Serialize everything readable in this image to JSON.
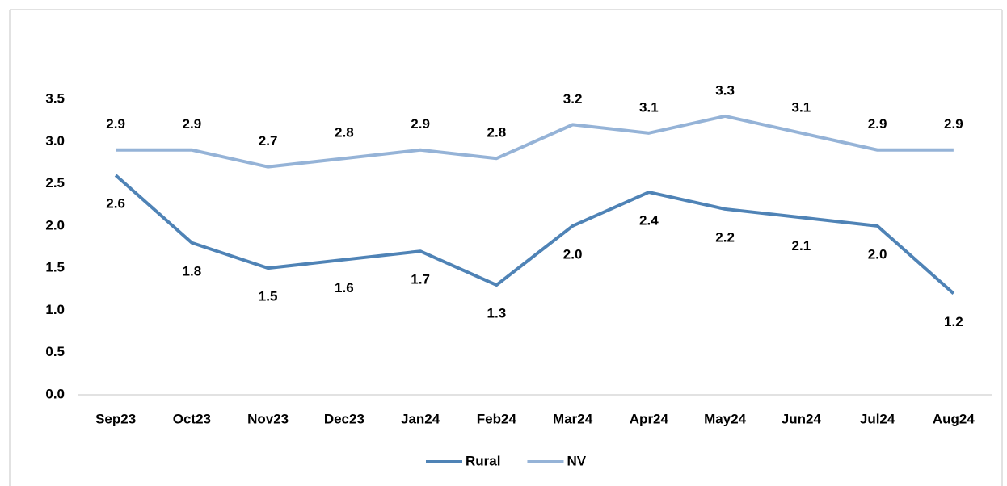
{
  "chart_data": {
    "type": "line",
    "categories": [
      "Sep23",
      "Oct23",
      "Nov23",
      "Dec23",
      "Jan24",
      "Feb24",
      "Mar24",
      "Apr24",
      "May24",
      "Jun24",
      "Jul24",
      "Aug24"
    ],
    "series": [
      {
        "name": "Rural",
        "color": "#4f83b6",
        "values": [
          2.6,
          1.8,
          1.5,
          1.6,
          1.7,
          1.3,
          2.0,
          2.4,
          2.2,
          2.1,
          2.0,
          1.2
        ],
        "value_labels": [
          "2.6",
          "1.8",
          "1.5",
          "1.6",
          "1.7",
          "1.3",
          "2.0",
          "2.4",
          "2.2",
          "2.1",
          "2.0",
          "1.2"
        ]
      },
      {
        "name": "NV",
        "color": "#95b3d7",
        "values": [
          2.9,
          2.9,
          2.7,
          2.8,
          2.9,
          2.8,
          3.2,
          3.1,
          3.3,
          3.1,
          2.9,
          2.9
        ],
        "value_labels": [
          "2.9",
          "2.9",
          "2.7",
          "2.8",
          "2.9",
          "2.8",
          "3.2",
          "3.1",
          "3.3",
          "3.1",
          "2.9",
          "2.9"
        ]
      }
    ],
    "ylim": [
      0,
      3.5
    ],
    "yticks": [
      {
        "value": 0,
        "label": "0.0"
      },
      0.5,
      {
        "value": 1,
        "label": "1.0"
      },
      1.5,
      {
        "value": 2,
        "label": "2.0"
      },
      2.5,
      {
        "value": 3,
        "label": "3.0"
      },
      3.5
    ],
    "grid": false,
    "legend": "bottom"
  }
}
